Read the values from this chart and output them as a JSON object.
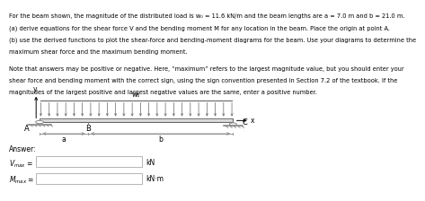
{
  "title_line1": "For the beam shown, the magnitude of the distributed load is w₀ = 11.6 kN/m and the beam lengths are a = 7.0 m and b = 21.0 m.",
  "title_line2": "(a) derive equations for the shear force V and the bending moment M for any location in the beam. Place the origin at point A.",
  "title_line3": "(b) use the derived functions to plot the shear-force and bending-moment diagrams for the beam. Use your diagrams to determine the",
  "title_line4": "maximum shear force and the maximum bending moment.",
  "note_line1": "Note that answers may be positive or negative. Here, “maximum” refers to the largest magnitude value, but you should enter your",
  "note_line2": "shear force and bending moment with the correct sign, using the sign convention presented in Section 7.2 of the textbook. If the",
  "note_line3": "magnitudes of the largest positive and largest negative values are the same, enter a positive number.",
  "answer_label": "Answer:",
  "vmax_unit": "kN",
  "mmax_unit": "kN·m",
  "point_A": "A",
  "point_B": "B",
  "point_C": "C",
  "label_a": "a",
  "label_b": "b",
  "label_wo": "w₀",
  "label_x": "x",
  "label_y": "y",
  "bg_color": "#ffffff",
  "text_color": "#000000",
  "beam_color_face": "#c8c8c8",
  "beam_color_edge": "#888888",
  "support_color": "#888888",
  "arrow_color": "#666666"
}
